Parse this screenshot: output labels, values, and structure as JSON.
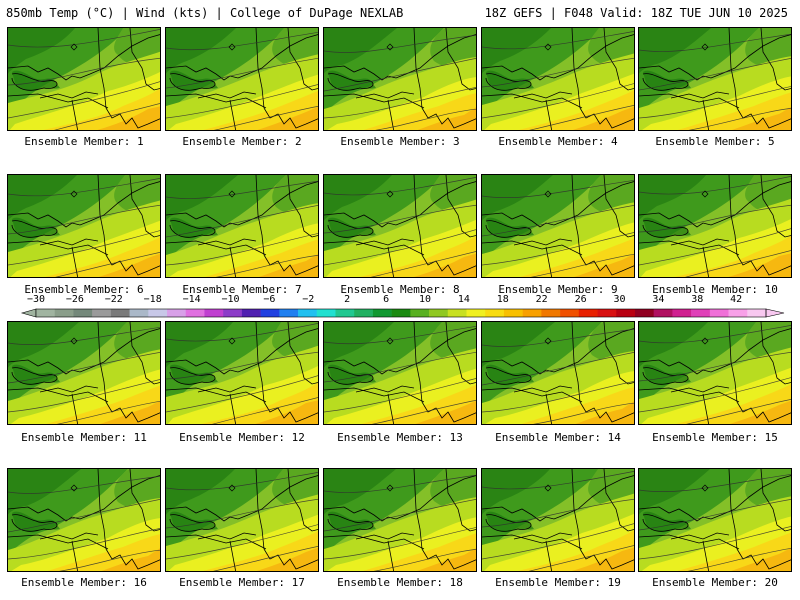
{
  "header": {
    "title": "850mb Temp (°C) | Wind (kts) | College of DuPage NEXLAB",
    "run": "18Z GEFS | F048 Valid: 18Z TUE JUN 10 2025"
  },
  "colorbar": {
    "labels": [
      "−30",
      "−26",
      "−22",
      "−18",
      "−14",
      "−10",
      "−6",
      "−2",
      "2",
      "6",
      "10",
      "14",
      "18",
      "22",
      "26",
      "30",
      "34",
      "38",
      "42"
    ],
    "colors": [
      "#a0b4a0",
      "#8a9e8a",
      "#74887a",
      "#9a9a9a",
      "#7a7a7a",
      "#aab8c8",
      "#c8c8e8",
      "#d8a0e8",
      "#e070e0",
      "#c040d0",
      "#8c3cc8",
      "#5020b0",
      "#2040e0",
      "#2080f0",
      "#20c0f0",
      "#20e0d0",
      "#20c890",
      "#20b060",
      "#109830",
      "#1a8a10",
      "#58b020",
      "#90c820",
      "#c8e020",
      "#f0f020",
      "#f8dc10",
      "#f8c000",
      "#f8a000",
      "#f07800",
      "#f05000",
      "#e82000",
      "#d81010",
      "#b80010",
      "#900020",
      "#b01060",
      "#d02090",
      "#e040b8",
      "#f070d8",
      "#f8a0e8",
      "#f8c8f0"
    ]
  },
  "panels": [
    {
      "label": "Ensemble Member: 1"
    },
    {
      "label": "Ensemble Member: 2"
    },
    {
      "label": "Ensemble Member: 3"
    },
    {
      "label": "Ensemble Member: 4"
    },
    {
      "label": "Ensemble Member: 5"
    },
    {
      "label": "Ensemble Member: 6"
    },
    {
      "label": "Ensemble Member: 7"
    },
    {
      "label": "Ensemble Member: 8"
    },
    {
      "label": "Ensemble Member: 9"
    },
    {
      "label": "Ensemble Member: 10"
    },
    {
      "label": "Ensemble Member: 11"
    },
    {
      "label": "Ensemble Member: 12"
    },
    {
      "label": "Ensemble Member: 13"
    },
    {
      "label": "Ensemble Member: 14"
    },
    {
      "label": "Ensemble Member: 15"
    },
    {
      "label": "Ensemble Member: 16"
    },
    {
      "label": "Ensemble Member: 17"
    },
    {
      "label": "Ensemble Member: 18"
    },
    {
      "label": "Ensemble Member: 19"
    },
    {
      "label": "Ensemble Member: 20"
    }
  ]
}
